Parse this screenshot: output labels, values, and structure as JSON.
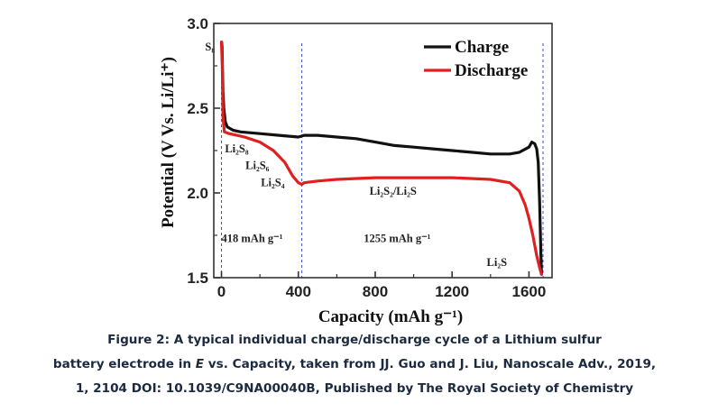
{
  "chart_data": {
    "type": "line",
    "xlabel": "Capacity (mAh g⁻¹)",
    "ylabel": "Potential (V Vs. Li/Li⁺)",
    "xlim": [
      -40,
      1720
    ],
    "ylim": [
      1.5,
      3.0
    ],
    "x_ticks": [
      "0",
      "400",
      "800",
      "1200",
      "1600"
    ],
    "y_ticks": [
      "1.5",
      "2.0",
      "2.5",
      "3.0"
    ],
    "legend_position": "top-right",
    "series": [
      {
        "name": "Charge",
        "color": "#111111",
        "x": [
          1665,
          1662,
          1655,
          1648,
          1640,
          1630,
          1615,
          1600,
          1550,
          1500,
          1400,
          1300,
          1200,
          1100,
          1000,
          900,
          800,
          700,
          600,
          500,
          430,
          400,
          300,
          200,
          100,
          60,
          30,
          20,
          12,
          8,
          5,
          3,
          1
        ],
        "y": [
          1.52,
          1.65,
          1.95,
          2.18,
          2.26,
          2.29,
          2.3,
          2.27,
          2.24,
          2.23,
          2.23,
          2.24,
          2.25,
          2.26,
          2.27,
          2.28,
          2.3,
          2.32,
          2.33,
          2.34,
          2.34,
          2.33,
          2.34,
          2.35,
          2.36,
          2.37,
          2.39,
          2.42,
          2.5,
          2.6,
          2.75,
          2.86,
          2.89
        ]
      },
      {
        "name": "Discharge",
        "color": "#e02020",
        "x": [
          0,
          4,
          8,
          15,
          40,
          80,
          120,
          200,
          270,
          330,
          370,
          400,
          418,
          430,
          500,
          600,
          800,
          1000,
          1200,
          1400,
          1500,
          1550,
          1580,
          1600,
          1620,
          1640,
          1655,
          1665
        ],
        "y": [
          2.89,
          2.75,
          2.45,
          2.36,
          2.35,
          2.34,
          2.33,
          2.3,
          2.25,
          2.18,
          2.1,
          2.06,
          2.05,
          2.06,
          2.07,
          2.08,
          2.09,
          2.09,
          2.09,
          2.08,
          2.06,
          2.01,
          1.93,
          1.85,
          1.75,
          1.63,
          1.56,
          1.52
        ]
      }
    ],
    "reference_lines_x": [
      0,
      418,
      1673
    ],
    "annotations": [
      {
        "text": "S₈",
        "x": -85,
        "y": 2.84
      },
      {
        "text": "Li₂S₈",
        "x": 18,
        "y": 2.24
      },
      {
        "text": "Li₂S₆",
        "x": 125,
        "y": 2.14
      },
      {
        "text": "Li₂S₄",
        "x": 205,
        "y": 2.04
      },
      {
        "text": "Li₂S₂/Li₂S",
        "x": 770,
        "y": 1.99
      },
      {
        "text": "418 mAh g⁻¹",
        "x": 0,
        "y": 1.71
      },
      {
        "text": "1255 mAh g⁻¹",
        "x": 740,
        "y": 1.71
      },
      {
        "text": "Li₂S",
        "x": 1380,
        "y": 1.57
      }
    ]
  },
  "caption": {
    "line1": "Figure 2: A typical individual charge/discharge cycle of a Lithium sulfur",
    "line2_before": "battery electrode in ",
    "line2_italic": "E",
    "line2_after": " vs. Capacity, taken from JJ. Guo and J. Liu, Nanoscale Adv., 2019,",
    "line3": "1, 2104 DOI: 10.1039/C9NA00040B, Published by The Royal Society of Chemistry"
  }
}
